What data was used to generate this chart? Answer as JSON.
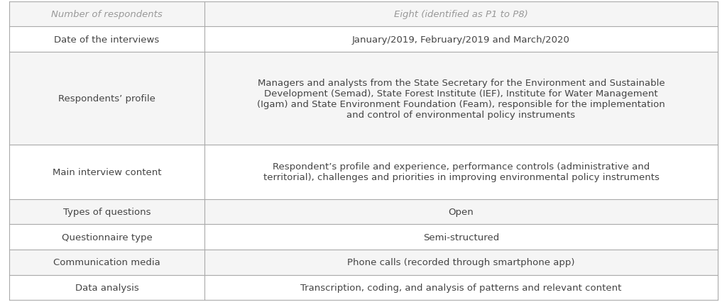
{
  "rows": [
    {
      "left": "Number of respondents",
      "right": "Eight (identified as P1 to P8)",
      "italic": true,
      "bg": "#f5f5f5",
      "left_color": "#999999",
      "right_color": "#999999"
    },
    {
      "left": "Date of the interviews",
      "right": "January/2019, February/2019 and March/2020",
      "italic": false,
      "bg": "#ffffff",
      "left_color": "#444444",
      "right_color": "#444444"
    },
    {
      "left": "Respondents’ profile",
      "right": "Managers and analysts from the State Secretary for the Environment and Sustainable\nDevelopment (Semad), State Forest Institute (IEF), Institute for Water Management\n(Igam) and State Environment Foundation (Feam), responsible for the implementation\nand control of environmental policy instruments",
      "italic": false,
      "bg": "#f5f5f5",
      "left_color": "#444444",
      "right_color": "#444444"
    },
    {
      "left": "Main interview content",
      "right": "Respondent’s profile and experience, performance controls (administrative and\nterritorial), challenges and priorities in improving environmental policy instruments",
      "italic": false,
      "bg": "#ffffff",
      "left_color": "#444444",
      "right_color": "#444444"
    },
    {
      "left": "Types of questions",
      "right": "Open",
      "italic": false,
      "bg": "#f5f5f5",
      "left_color": "#444444",
      "right_color": "#444444"
    },
    {
      "left": "Questionnaire type",
      "right": "Semi-structured",
      "italic": false,
      "bg": "#ffffff",
      "left_color": "#444444",
      "right_color": "#444444"
    },
    {
      "left": "Communication media",
      "right": "Phone calls (recorded through smartphone app)",
      "italic": false,
      "bg": "#f5f5f5",
      "left_color": "#444444",
      "right_color": "#444444"
    },
    {
      "left": "Data analysis",
      "right": "Transcription, coding, and analysis of patterns and relevant content",
      "italic": false,
      "bg": "#ffffff",
      "left_color": "#444444",
      "right_color": "#444444"
    }
  ],
  "col_split": 0.28,
  "border_color": "#aaaaaa",
  "font_size": 9.5,
  "fig_bg": "#ffffff"
}
